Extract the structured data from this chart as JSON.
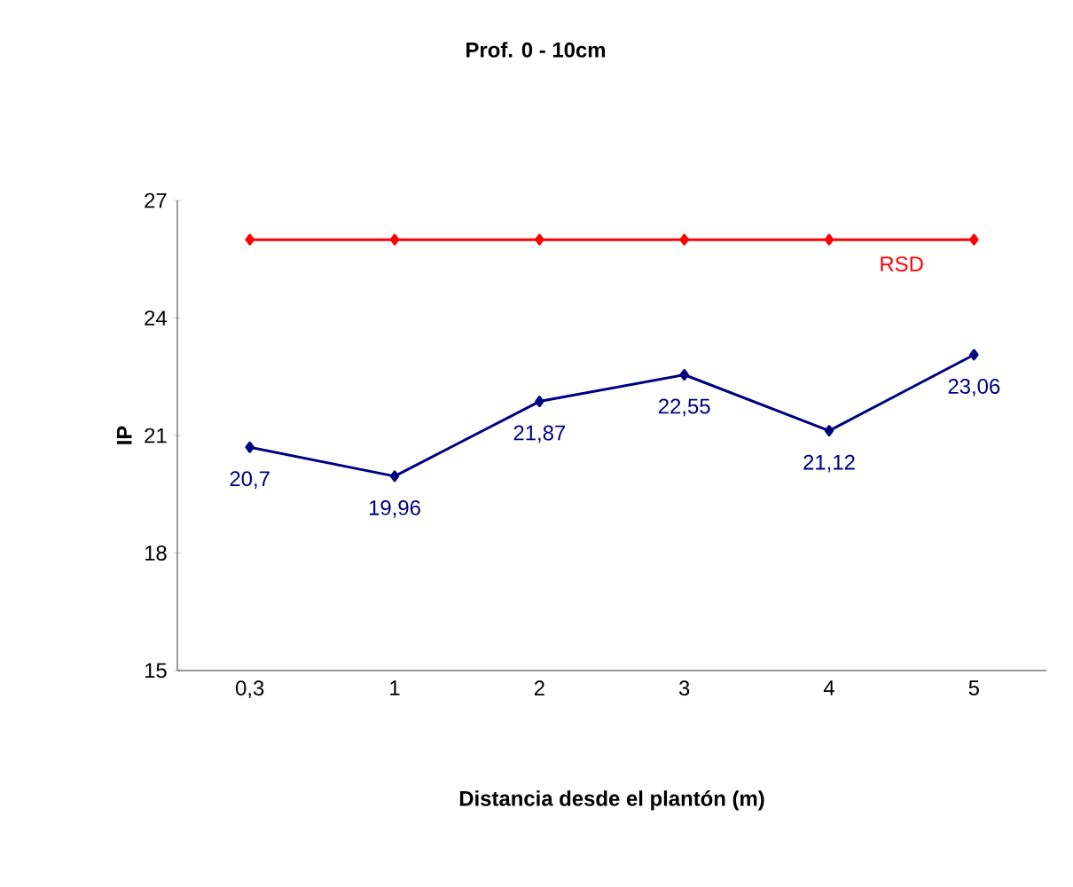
{
  "chart_data": {
    "type": "line",
    "title": "Prof. 0 - 10cm",
    "xlabel": "Distancia desde el plantón (m)",
    "ylabel": "IP",
    "categories": [
      "0,3",
      "1",
      "2",
      "3",
      "4",
      "5"
    ],
    "series": [
      {
        "name": "RSD",
        "color": "#ff0000",
        "values": [
          26,
          26,
          26,
          26,
          26,
          26
        ]
      },
      {
        "color": "#000080",
        "values": [
          20.7,
          19.96,
          21.87,
          22.55,
          21.12,
          23.06
        ],
        "value_labels": [
          "20,7",
          "19,96",
          "21,87",
          "22,55",
          "21,12",
          "23,06"
        ]
      }
    ],
    "ylim": [
      15,
      27
    ],
    "yticks": [
      15,
      18,
      21,
      24,
      27
    ],
    "marker": "diamond",
    "line_style": "solid",
    "grid": false
  }
}
